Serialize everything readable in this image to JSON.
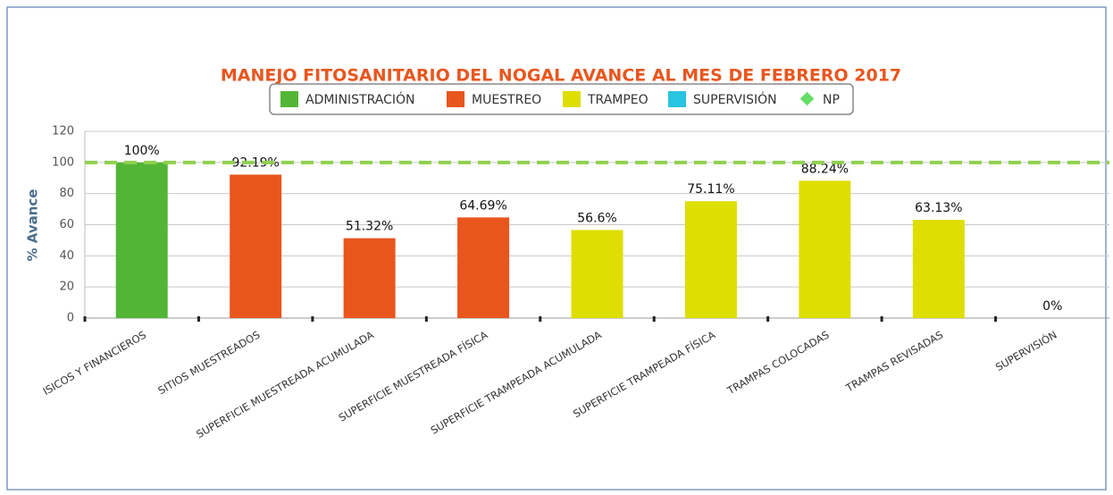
{
  "chart_data": {
    "type": "bar",
    "title": "MANEJO FITOSANITARIO DEL NOGAL AVANCE AL MES DE FEBRERO 2017",
    "y_label": "% Avance",
    "categories": [
      "ISICOS Y FINANCIEROS",
      "SITIOS MUESTREADOS",
      "SUPERFICIE MUESTREADA ACUMULADA",
      "SUPERFICIE MUESTREADA FÍSICA",
      "SUPERFICIE TRAMPEADA ACUMULADA",
      "SUPERFICIE TRAMPEADA FÍSICA",
      "TRAMPAS COLOCADAS",
      "TRAMPAS REVISADAS",
      "SUPERVISIÓN"
    ],
    "series": [
      {
        "name": "ADMINISTRACIÓN",
        "color": "#52b535",
        "values": [
          100,
          null,
          null,
          null,
          null,
          null,
          null,
          null,
          null
        ],
        "value_labels": [
          "100%",
          null,
          null,
          null,
          null,
          null,
          null,
          null,
          null
        ]
      },
      {
        "name": "MUESTREO",
        "color": "#e8561e",
        "values": [
          null,
          92.19,
          51.32,
          64.69,
          null,
          null,
          null,
          null,
          null
        ],
        "value_labels": [
          null,
          "92.19%",
          "51.32%",
          "64.69%",
          null,
          null,
          null,
          null,
          null
        ]
      },
      {
        "name": "TRAMPEO",
        "color": "#dede00",
        "values": [
          null,
          null,
          null,
          null,
          56.6,
          75.11,
          88.24,
          63.13,
          null
        ],
        "value_labels": [
          null,
          null,
          null,
          null,
          "56.6%",
          "75.11%",
          "88.24%",
          "63.13%",
          null
        ]
      },
      {
        "name": "SUPERVISIÓN",
        "color": "#29c4e0",
        "values": [
          null,
          null,
          null,
          null,
          null,
          null,
          null,
          null,
          0
        ],
        "value_labels": [
          null,
          null,
          null,
          null,
          null,
          null,
          null,
          null,
          "0%"
        ]
      }
    ],
    "reference_line": {
      "name": "NP",
      "value": 100,
      "color": "#8fd14f",
      "marker_color": "#66dd66"
    },
    "ylim": [
      0,
      120
    ],
    "yticks": [
      0,
      20,
      40,
      60,
      80,
      100,
      120
    ],
    "grid": true
  }
}
